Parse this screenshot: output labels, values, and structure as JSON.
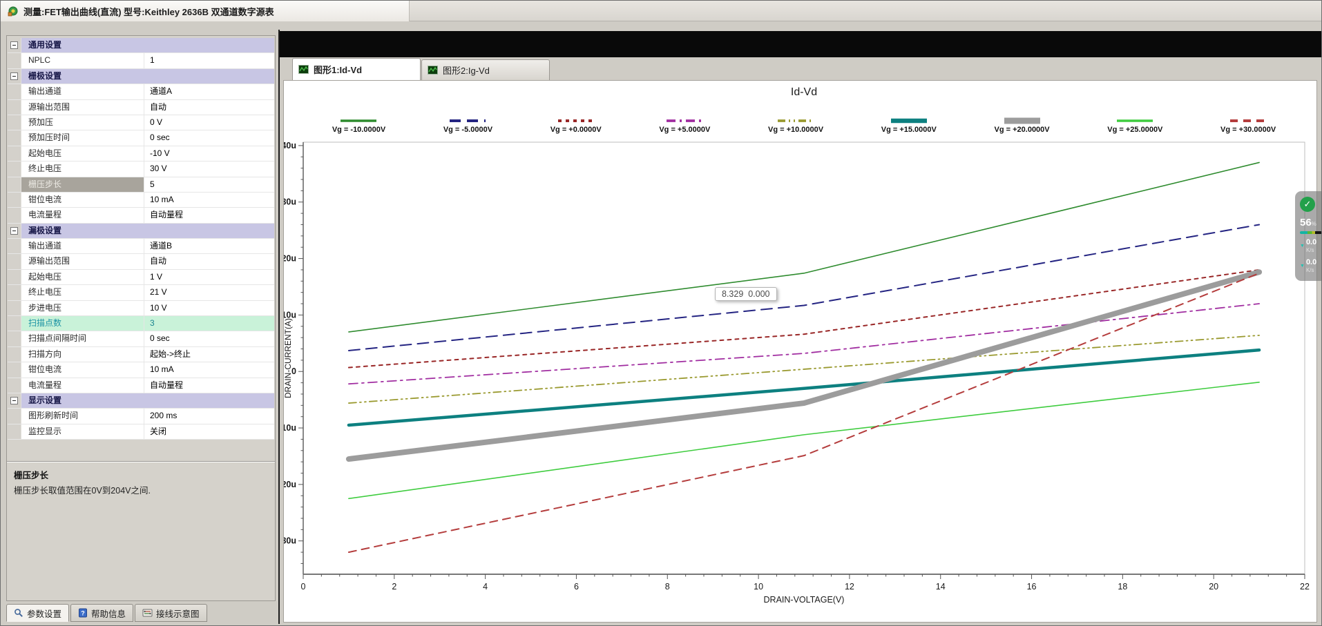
{
  "window": {
    "title": "测量:FET输出曲线(直流) 型号:Keithley 2636B 双通道数字源表"
  },
  "property_grid": {
    "rows": [
      {
        "type": "category",
        "label": "通用设置"
      },
      {
        "type": "item",
        "label": "NPLC",
        "value": "1"
      },
      {
        "type": "category",
        "label": "栅极设置"
      },
      {
        "type": "item",
        "label": "输出通道",
        "value": "通道A"
      },
      {
        "type": "item",
        "label": "源输出范围",
        "value": "自动"
      },
      {
        "type": "item",
        "label": "预加压",
        "value": "0 V"
      },
      {
        "type": "item",
        "label": "预加压时间",
        "value": "0 sec"
      },
      {
        "type": "item",
        "label": "起始电压",
        "value": "-10 V"
      },
      {
        "type": "item",
        "label": "终止电压",
        "value": "30 V"
      },
      {
        "type": "item",
        "label": "栅压步长",
        "value": "5",
        "state": "selected"
      },
      {
        "type": "item",
        "label": "钳位电流",
        "value": "10 mA"
      },
      {
        "type": "item",
        "label": "电流量程",
        "value": "自动量程"
      },
      {
        "type": "category",
        "label": "漏极设置"
      },
      {
        "type": "item",
        "label": "输出通道",
        "value": "通道B"
      },
      {
        "type": "item",
        "label": "源输出范围",
        "value": "自动"
      },
      {
        "type": "item",
        "label": "起始电压",
        "value": "1 V"
      },
      {
        "type": "item",
        "label": "终止电压",
        "value": "21 V"
      },
      {
        "type": "item",
        "label": "步进电压",
        "value": "10 V"
      },
      {
        "type": "item",
        "label": "扫描点数",
        "value": "3",
        "state": "highlight"
      },
      {
        "type": "item",
        "label": "扫描点间隔时间",
        "value": "0 sec"
      },
      {
        "type": "item",
        "label": "扫描方向",
        "value": "起始->终止"
      },
      {
        "type": "item",
        "label": "钳位电流",
        "value": "10 mA"
      },
      {
        "type": "item",
        "label": "电流量程",
        "value": "自动量程"
      },
      {
        "type": "category",
        "label": "显示设置"
      },
      {
        "type": "item",
        "label": "图形刷新时间",
        "value": "200 ms"
      },
      {
        "type": "item",
        "label": "监控显示",
        "value": "关闭"
      }
    ]
  },
  "help": {
    "title": "栅压步长",
    "text": "栅压步长取值范围在0V到204V之间."
  },
  "bottom_tabs": [
    {
      "label": "参数设置",
      "icon": "magnifier-icon",
      "active": true
    },
    {
      "label": "帮助信息",
      "icon": "help-book-icon",
      "active": false
    },
    {
      "label": "接线示意图",
      "icon": "wiring-icon",
      "active": false
    }
  ],
  "graph_tabs": [
    {
      "label": "图形1:Id-Vd",
      "active": true
    },
    {
      "label": "图形2:Ig-Vd",
      "active": false
    }
  ],
  "tooltip": {
    "text": "8.329  0.000"
  },
  "overlay_widget": {
    "check_glyph": "✓",
    "percent": "56",
    "percent_suffix": "%",
    "bar_colors": [
      "#14b4a4",
      "#58b832",
      "#b4bc28",
      "#141414"
    ],
    "rows": [
      {
        "arrow": "▼",
        "value": "0.0",
        "unit": "K/s"
      },
      {
        "arrow": "▼",
        "value": "0.0",
        "unit": "K/s"
      }
    ]
  },
  "chart_data": {
    "type": "line",
    "title": "Id-Vd",
    "xlabel": "DRAIN-VOLTAGE(V)",
    "ylabel": "DRAIN-CURRENT(A)",
    "x": [
      1,
      11,
      21
    ],
    "xlim": [
      0,
      22
    ],
    "ylim_uA": [
      -35.9,
      40.6
    ],
    "x_major_ticks": [
      0,
      2,
      4,
      6,
      8,
      10,
      12,
      14,
      16,
      18,
      20,
      22
    ],
    "x_minor_step": 0.4,
    "y_major_ticks": [
      {
        "v": 40,
        "label": "40u"
      },
      {
        "v": 30,
        "label": "30u"
      },
      {
        "v": 20,
        "label": "20u"
      },
      {
        "v": 10,
        "label": "10u"
      },
      {
        "v": 0,
        "label": "0"
      },
      {
        "v": -10,
        "label": "-10u"
      },
      {
        "v": -20,
        "label": "-20u"
      },
      {
        "v": -30,
        "label": "-30u"
      }
    ],
    "y_minor_step": 2,
    "grid": false,
    "legend_position": "top",
    "series": [
      {
        "name": "Vg = -10.0000V",
        "values_uA": [
          7.0,
          17.4,
          37.0
        ],
        "color": "#2e8b2e",
        "width": 1.6,
        "dash": ""
      },
      {
        "name": "Vg = -5.0000V",
        "values_uA": [
          3.7,
          11.7,
          26.0
        ],
        "color": "#242482",
        "width": 2,
        "dash": "16,9"
      },
      {
        "name": "Vg = +0.0000V",
        "values_uA": [
          0.7,
          6.6,
          18.0
        ],
        "color": "#992626",
        "width": 2,
        "dash": "5,6"
      },
      {
        "name": "Vg = +5.0000V",
        "values_uA": [
          -2.2,
          3.2,
          12.0
        ],
        "color": "#a02ca0",
        "width": 1.8,
        "dash": "13,6,3,6"
      },
      {
        "name": "Vg = +10.0000V",
        "values_uA": [
          -5.6,
          0.4,
          6.4
        ],
        "color": "#99992e",
        "width": 1.8,
        "dash": "11,5,2,5,2,5"
      },
      {
        "name": "Vg = +15.0000V",
        "values_uA": [
          -9.5,
          -3.0,
          3.8
        ],
        "color": "#0d8080",
        "width": 4.5,
        "dash": ""
      },
      {
        "name": "Vg = +20.0000V",
        "values_uA": [
          -15.5,
          -5.6,
          17.6
        ],
        "color": "#9c9c9c",
        "width": 8,
        "dash": ""
      },
      {
        "name": "Vg = +25.0000V",
        "values_uA": [
          -22.5,
          -11.2,
          -1.9
        ],
        "color": "#3ecc3e",
        "width": 1.6,
        "dash": ""
      },
      {
        "name": "Vg = +30.0000V",
        "values_uA": [
          -32.0,
          -14.9,
          17.4
        ],
        "color": "#b43c3c",
        "width": 2,
        "dash": "11,8"
      }
    ]
  }
}
